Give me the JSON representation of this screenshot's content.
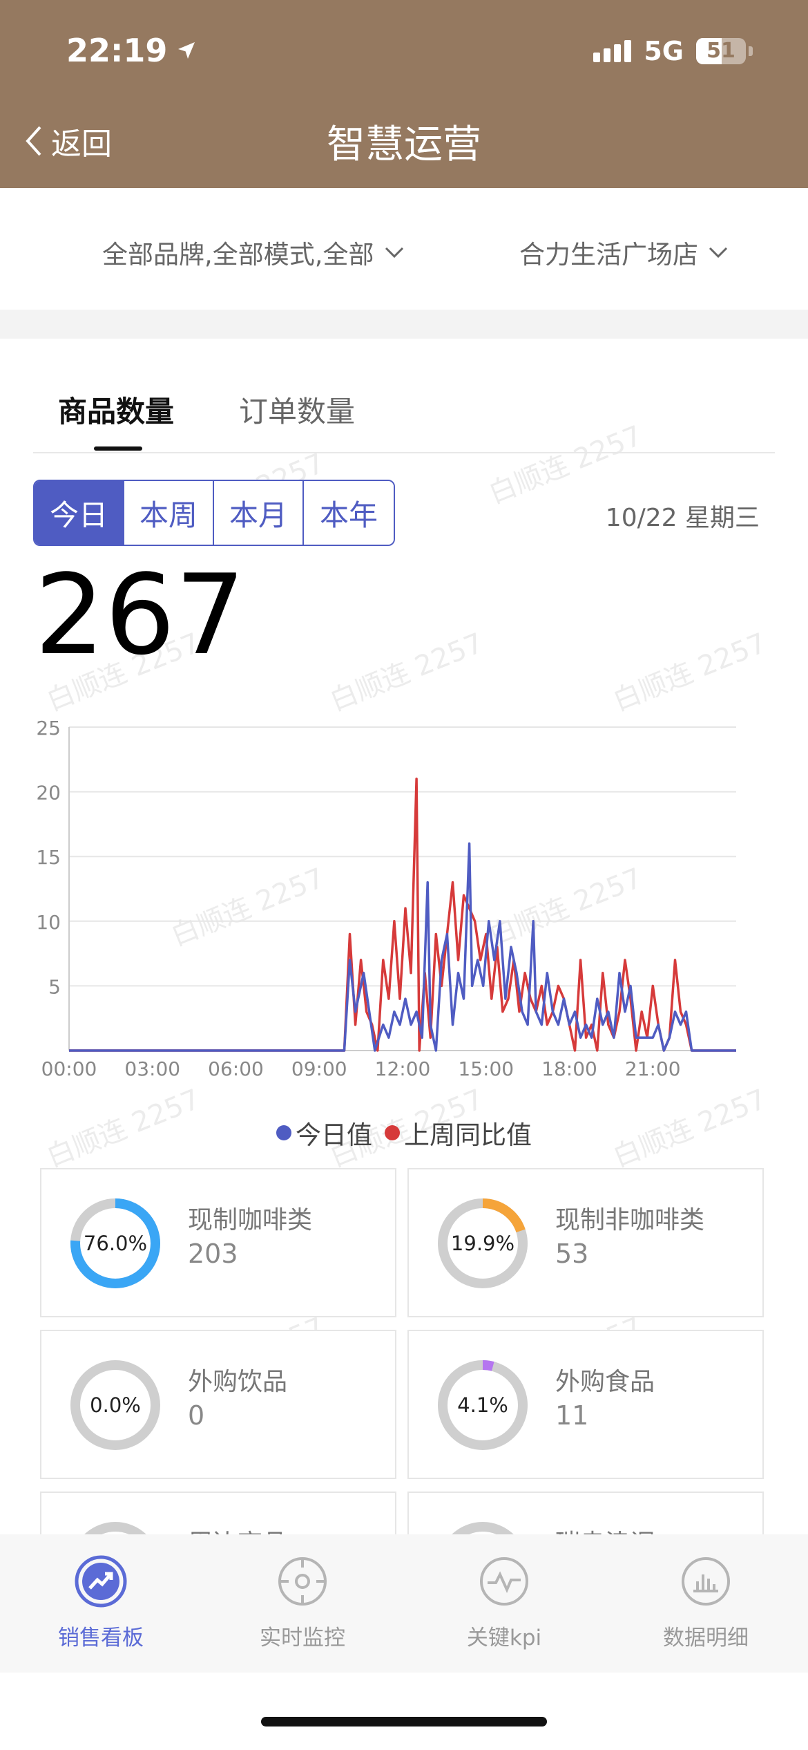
{
  "status_bar": {
    "time": "22:19",
    "network": "5G",
    "battery": "51"
  },
  "nav": {
    "back_label": "返回",
    "title": "智慧运营"
  },
  "filters": {
    "brand": "全部品牌,全部模式,全部",
    "store": "合力生活广场店"
  },
  "tabs": [
    {
      "label": "商品数量",
      "active": true
    },
    {
      "label": "订单数量",
      "active": false
    }
  ],
  "period": [
    {
      "label": "今日",
      "active": true
    },
    {
      "label": "本周",
      "active": false
    },
    {
      "label": "本月",
      "active": false
    },
    {
      "label": "本年",
      "active": false
    }
  ],
  "date": "10/22 星期三",
  "total": "267",
  "watermark": "白顺连 2257",
  "chart_data": {
    "type": "line",
    "x_tick_labels": [
      "00:00",
      "03:00",
      "06:00",
      "09:00",
      "12:00",
      "15:00",
      "18:00",
      "21:00"
    ],
    "ylim": [
      0,
      25
    ],
    "y_ticks": [
      "5",
      "10",
      "15",
      "20",
      "25"
    ],
    "x_range_hours": [
      0,
      24
    ],
    "legend_position": "bottom-center",
    "grid": true,
    "series": [
      {
        "name": "今日值",
        "color": "#4f5cc2",
        "points": [
          [
            0,
            0
          ],
          [
            9.9,
            0
          ],
          [
            10.1,
            7
          ],
          [
            10.3,
            3
          ],
          [
            10.6,
            6
          ],
          [
            10.8,
            3
          ],
          [
            11.0,
            0
          ],
          [
            11.3,
            2
          ],
          [
            11.5,
            1
          ],
          [
            11.7,
            3
          ],
          [
            11.9,
            2
          ],
          [
            12.1,
            4
          ],
          [
            12.3,
            2
          ],
          [
            12.5,
            3
          ],
          [
            12.7,
            1
          ],
          [
            12.9,
            13
          ],
          [
            13.0,
            2
          ],
          [
            13.2,
            0
          ],
          [
            13.4,
            7
          ],
          [
            13.6,
            9
          ],
          [
            13.8,
            2
          ],
          [
            14.0,
            6
          ],
          [
            14.2,
            4
          ],
          [
            14.4,
            16
          ],
          [
            14.5,
            5
          ],
          [
            14.7,
            7
          ],
          [
            14.9,
            5
          ],
          [
            15.1,
            10
          ],
          [
            15.3,
            7
          ],
          [
            15.5,
            10
          ],
          [
            15.7,
            4
          ],
          [
            15.9,
            8
          ],
          [
            16.1,
            6
          ],
          [
            16.3,
            3
          ],
          [
            16.5,
            2
          ],
          [
            16.7,
            10
          ],
          [
            16.8,
            3
          ],
          [
            17.0,
            2
          ],
          [
            17.2,
            6
          ],
          [
            17.4,
            3
          ],
          [
            17.6,
            2
          ],
          [
            17.8,
            4
          ],
          [
            18.0,
            2
          ],
          [
            18.2,
            3
          ],
          [
            18.4,
            1
          ],
          [
            18.6,
            2
          ],
          [
            18.8,
            1
          ],
          [
            19.0,
            4
          ],
          [
            19.2,
            2
          ],
          [
            19.4,
            3
          ],
          [
            19.6,
            1
          ],
          [
            19.8,
            6
          ],
          [
            20.0,
            3
          ],
          [
            20.2,
            5
          ],
          [
            20.4,
            1
          ],
          [
            20.6,
            1
          ],
          [
            20.8,
            1
          ],
          [
            21.0,
            1
          ],
          [
            21.2,
            2
          ],
          [
            21.4,
            0
          ],
          [
            21.6,
            1
          ],
          [
            21.8,
            3
          ],
          [
            22.0,
            2
          ],
          [
            22.2,
            3
          ],
          [
            22.4,
            0
          ],
          [
            24,
            0
          ]
        ]
      },
      {
        "name": "上周同比值",
        "color": "#d63a3a",
        "points": [
          [
            0,
            0
          ],
          [
            9.9,
            0
          ],
          [
            10.1,
            9
          ],
          [
            10.3,
            2
          ],
          [
            10.5,
            7
          ],
          [
            10.7,
            3
          ],
          [
            10.9,
            2
          ],
          [
            11.1,
            0
          ],
          [
            11.3,
            7
          ],
          [
            11.5,
            4
          ],
          [
            11.7,
            10
          ],
          [
            11.9,
            4
          ],
          [
            12.1,
            11
          ],
          [
            12.3,
            6
          ],
          [
            12.5,
            21
          ],
          [
            12.6,
            0
          ],
          [
            12.8,
            6
          ],
          [
            13.0,
            1
          ],
          [
            13.2,
            9
          ],
          [
            13.4,
            5
          ],
          [
            13.6,
            9
          ],
          [
            13.8,
            13
          ],
          [
            14.0,
            7
          ],
          [
            14.2,
            12
          ],
          [
            14.4,
            11
          ],
          [
            14.6,
            10
          ],
          [
            14.8,
            7
          ],
          [
            15.0,
            9
          ],
          [
            15.2,
            4
          ],
          [
            15.4,
            8
          ],
          [
            15.6,
            3
          ],
          [
            15.8,
            4
          ],
          [
            16.0,
            7
          ],
          [
            16.2,
            3
          ],
          [
            16.4,
            6
          ],
          [
            16.6,
            4
          ],
          [
            16.8,
            3
          ],
          [
            17.0,
            5
          ],
          [
            17.2,
            2
          ],
          [
            17.4,
            3
          ],
          [
            17.6,
            5
          ],
          [
            17.8,
            4
          ],
          [
            18.0,
            2
          ],
          [
            18.2,
            0
          ],
          [
            18.4,
            7
          ],
          [
            18.6,
            1
          ],
          [
            18.8,
            2
          ],
          [
            19.0,
            0
          ],
          [
            19.2,
            6
          ],
          [
            19.4,
            2
          ],
          [
            19.6,
            1
          ],
          [
            19.8,
            3
          ],
          [
            20.0,
            7
          ],
          [
            20.2,
            4
          ],
          [
            20.4,
            0
          ],
          [
            20.6,
            3
          ],
          [
            20.8,
            1
          ],
          [
            21.0,
            5
          ],
          [
            21.2,
            2
          ],
          [
            21.4,
            0
          ],
          [
            21.6,
            1
          ],
          [
            21.8,
            7
          ],
          [
            22.0,
            3
          ],
          [
            22.2,
            2
          ],
          [
            22.4,
            0
          ],
          [
            24,
            0
          ]
        ]
      }
    ]
  },
  "stats": [
    {
      "label": "现制咖啡类",
      "value": "203",
      "percent": "76.0%",
      "fraction": 0.76,
      "color": "#3aa6f5"
    },
    {
      "label": "现制非咖啡类",
      "value": "53",
      "percent": "19.9%",
      "fraction": 0.199,
      "color": "#f5a43a"
    },
    {
      "label": "外购饮品",
      "value": "0",
      "percent": "0.0%",
      "fraction": 0.0,
      "color": "#3aa6f5"
    },
    {
      "label": "外购食品",
      "value": "11",
      "percent": "4.1%",
      "fraction": 0.041,
      "color": "#b576f0"
    }
  ],
  "stats_partial": [
    {
      "label": "周边商品"
    },
    {
      "label": "瑞幸津调"
    }
  ],
  "bottom_nav": [
    {
      "label": "销售看板",
      "active": true
    },
    {
      "label": "实时监控",
      "active": false
    },
    {
      "label": "关键kpi",
      "active": false
    },
    {
      "label": "数据明细",
      "active": false
    }
  ]
}
